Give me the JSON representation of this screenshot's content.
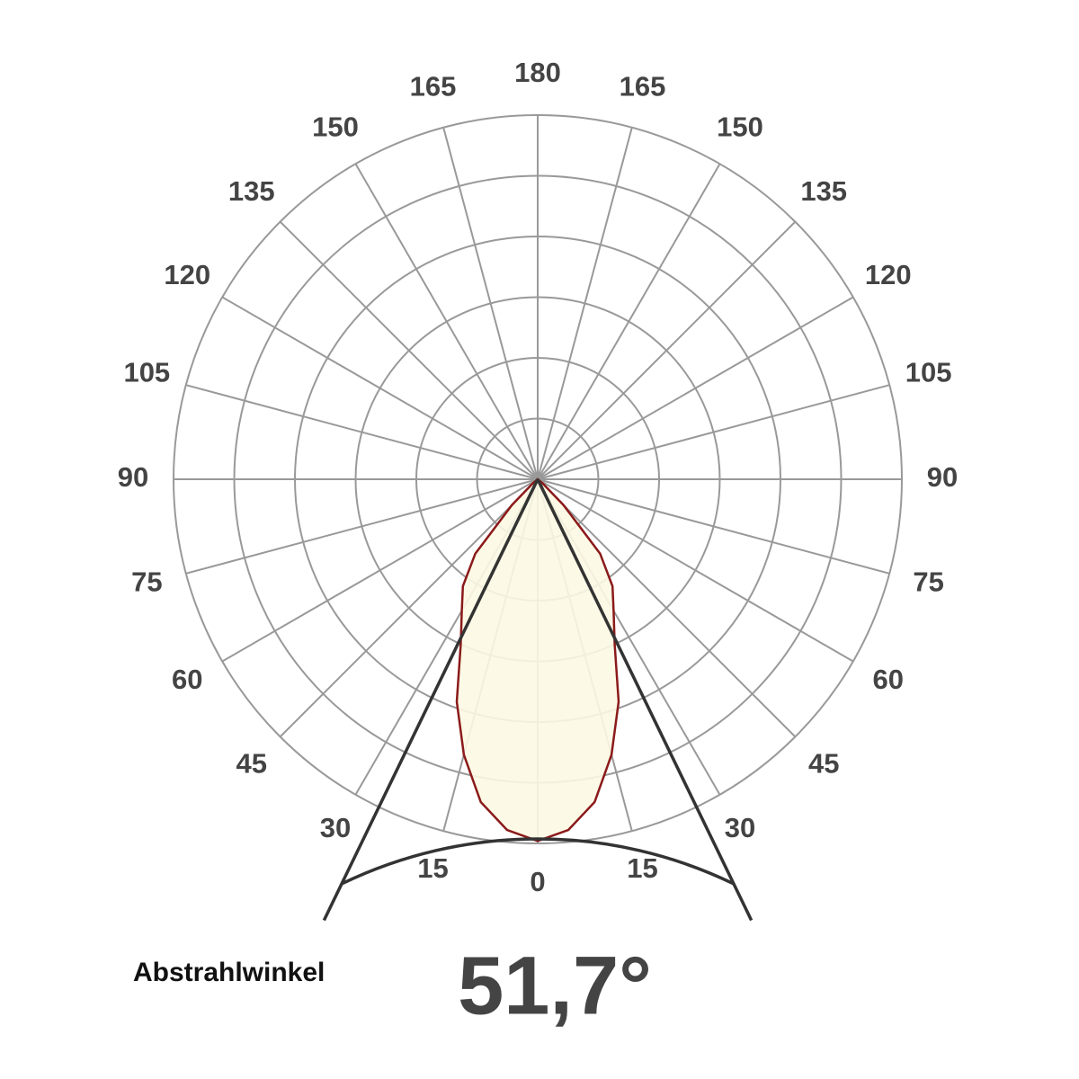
{
  "chart_data": {
    "type": "polar",
    "angle_ticks": [
      0,
      15,
      30,
      45,
      60,
      75,
      90,
      105,
      120,
      135,
      150,
      165,
      180
    ],
    "rlim": [
      0,
      6
    ],
    "rticks": [
      1,
      2,
      3,
      4,
      5,
      6
    ],
    "x": [
      -60,
      -55,
      -50,
      -45,
      -40,
      -35,
      -30,
      -25,
      -20,
      -15,
      -10,
      -5,
      0,
      5,
      10,
      15,
      20,
      25,
      30,
      35,
      40,
      45,
      50,
      55,
      60
    ],
    "values": [
      0,
      0,
      0.1,
      0.6,
      1.6,
      2.15,
      2.5,
      3.0,
      3.9,
      4.7,
      5.4,
      5.8,
      5.96,
      5.8,
      5.4,
      4.7,
      3.9,
      3.0,
      2.5,
      2.15,
      1.6,
      0.6,
      0.1,
      0,
      0
    ],
    "line_color": "#8b1a1a",
    "fill_color": "#fcf9e3",
    "grid_color": "#999999",
    "beam_label": "Abstrahlwinkel",
    "beam_angle": 51.7,
    "beam_angle_label": "51,7°"
  }
}
